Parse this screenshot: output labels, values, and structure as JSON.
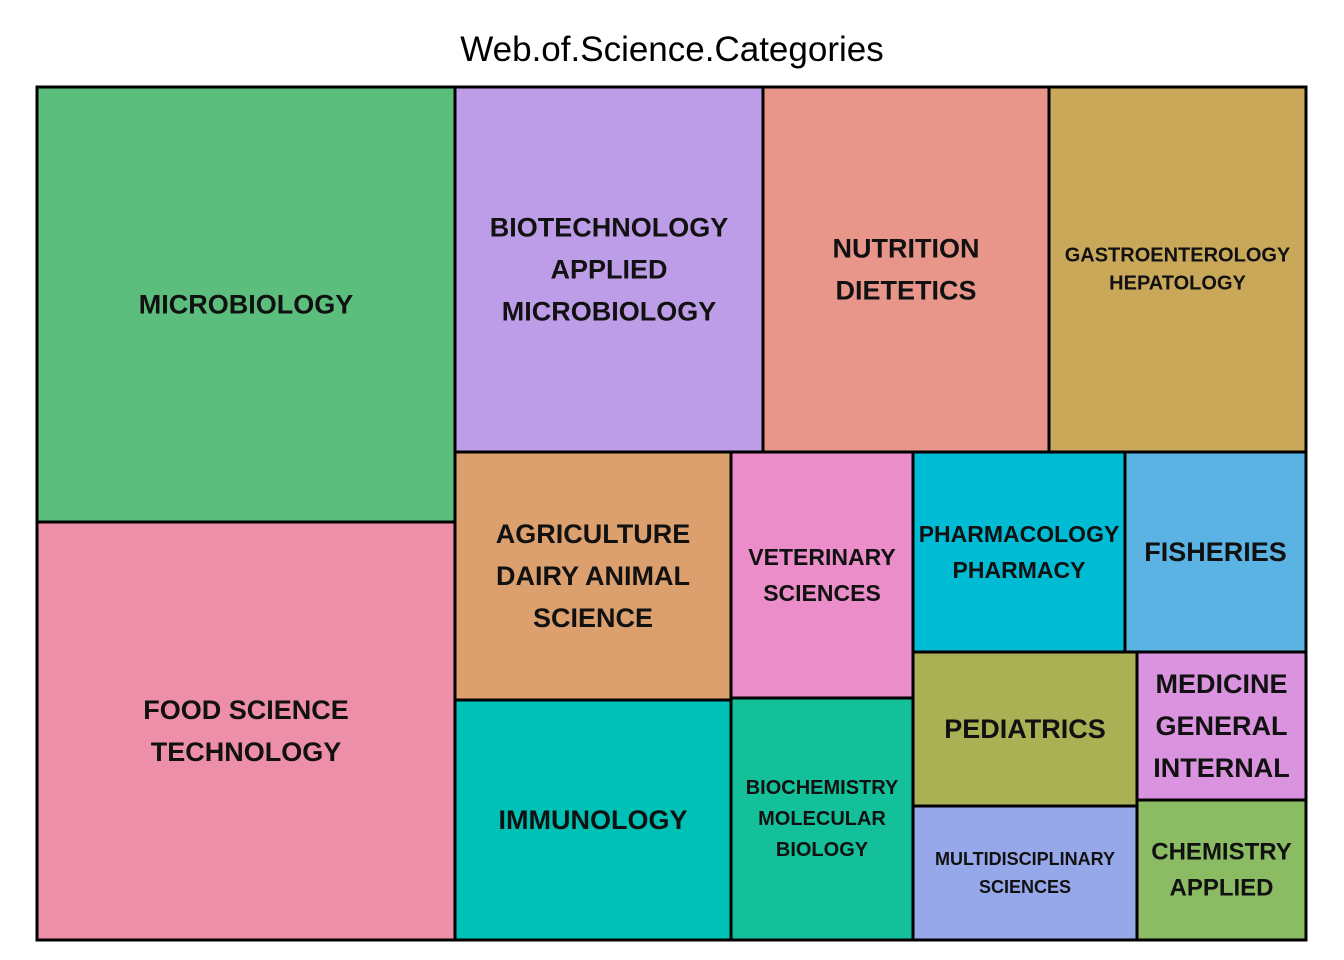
{
  "title": "Web.of.Science.Categories",
  "chart_data": {
    "type": "treemap",
    "title": "Web.of.Science.Categories",
    "tiles": [
      {
        "id": "microbiology",
        "lines": [
          "MICROBIOLOGY"
        ],
        "color": "#5BBE7C"
      },
      {
        "id": "food-science-technology",
        "lines": [
          "FOOD SCIENCE",
          "TECHNOLOGY"
        ],
        "color": "#EE8FA9"
      },
      {
        "id": "biotechnology-applied-microbiology",
        "lines": [
          "BIOTECHNOLOGY",
          "APPLIED",
          "MICROBIOLOGY"
        ],
        "color": "#BE9DE8"
      },
      {
        "id": "nutrition-dietetics",
        "lines": [
          "NUTRITION",
          "DIETETICS"
        ],
        "color": "#E8968A"
      },
      {
        "id": "gastroenterology-hepatology",
        "lines": [
          "GASTROENTEROLOGY",
          "HEPATOLOGY"
        ],
        "color": "#C9A85A"
      },
      {
        "id": "agriculture-dairy-animal-science",
        "lines": [
          "AGRICULTURE",
          "DAIRY ANIMAL",
          "SCIENCE"
        ],
        "color": "#DBA06E"
      },
      {
        "id": "veterinary-sciences",
        "lines": [
          "VETERINARY",
          "SCIENCES"
        ],
        "color": "#EA8DC8"
      },
      {
        "id": "pharmacology-pharmacy",
        "lines": [
          "PHARMACOLOGY",
          "PHARMACY"
        ],
        "color": "#00BBD4"
      },
      {
        "id": "fisheries",
        "lines": [
          "FISHERIES"
        ],
        "color": "#5BB3E3"
      },
      {
        "id": "immunology",
        "lines": [
          "IMMUNOLOGY"
        ],
        "color": "#00C1B6"
      },
      {
        "id": "biochemistry-molecular-biology",
        "lines": [
          "BIOCHEMISTRY",
          "MOLECULAR",
          "BIOLOGY"
        ],
        "color": "#14C09A"
      },
      {
        "id": "pediatrics",
        "lines": [
          "PEDIATRICS"
        ],
        "color": "#AAB054"
      },
      {
        "id": "medicine-general-internal",
        "lines": [
          "MEDICINE",
          "GENERAL",
          "INTERNAL"
        ],
        "color": "#DA93DE"
      },
      {
        "id": "multidisciplinary-sciences",
        "lines": [
          "MULTIDISCIPLINARY",
          "SCIENCES"
        ],
        "color": "#97A8EA"
      },
      {
        "id": "chemistry-applied",
        "lines": [
          "CHEMISTRY",
          "APPLIED"
        ],
        "color": "#8BBB63"
      }
    ]
  }
}
